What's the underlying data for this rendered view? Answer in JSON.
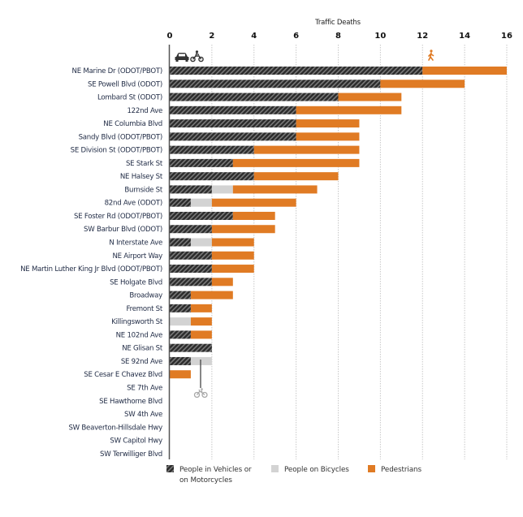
{
  "chart_data": {
    "type": "bar",
    "orientation": "horizontal",
    "stacked": true,
    "title": "Traffic Deaths",
    "xlabel": "Traffic Deaths",
    "ylabel": "",
    "xlim": [
      0,
      16
    ],
    "x_ticks": [
      "0",
      "2",
      "4",
      "6",
      "8",
      "10",
      "12",
      "14",
      "16"
    ],
    "grid": "vertical dotted",
    "legend_position": "bottom",
    "categories": [
      "NE Marine Dr (ODOT/PBOT)",
      "SE Powell Blvd (ODOT)",
      "Lombard St (ODOT)",
      "122nd Ave",
      "NE Columbia Blvd",
      "Sandy Blvd (ODOT/PBOT)",
      "SE Division St (ODOT/PBOT)",
      "SE Stark St",
      "NE Halsey St",
      "Burnside St",
      "82nd Ave (ODOT)",
      "SE Foster Rd (ODOT/PBOT)",
      "SW Barbur Blvd (ODOT)",
      "N Interstate Ave",
      "NE Airport Way",
      "NE Martin Luther King Jr Blvd (ODOT/PBOT)",
      "SE Holgate Blvd",
      "Broadway",
      "Fremont St",
      "Killingsworth St",
      "NE 102nd Ave",
      "NE Glisan St",
      "SE 92nd Ave",
      "SE Cesar E Chavez Blvd",
      "SE 7th Ave",
      "SE Hawthorne Blvd",
      "SW 4th Ave",
      "SW Beaverton-Hillsdale Hwy",
      "SW Capitol Hwy",
      "SW Terwilliger Blvd"
    ],
    "series": [
      {
        "name": "People in Vehicles or on Motorcycles",
        "legend_line1": "People in Vehicles or",
        "legend_line2": "on Motorcycles",
        "color": "#3a3a3a",
        "pattern": "diagonal-hatch",
        "values": [
          12,
          10,
          8,
          6,
          6,
          6,
          4,
          3,
          4,
          2,
          1,
          3,
          2,
          1,
          2,
          2,
          2,
          1,
          1,
          0,
          1,
          2,
          1,
          0,
          0,
          0,
          0,
          0,
          0,
          0
        ]
      },
      {
        "name": "People on Bicycles",
        "color": "#d3d3d3",
        "values": [
          0,
          0,
          0,
          0,
          0,
          0,
          0,
          0,
          0,
          1,
          1,
          0,
          0,
          1,
          0,
          0,
          0,
          0,
          0,
          1,
          0,
          0,
          1,
          0,
          0,
          0,
          0,
          0,
          0,
          0
        ]
      },
      {
        "name": "Pedestrians",
        "color": "#e07b24",
        "values": [
          4,
          4,
          3,
          5,
          3,
          3,
          5,
          6,
          4,
          4,
          4,
          2,
          3,
          2,
          2,
          2,
          1,
          2,
          1,
          1,
          1,
          0,
          0,
          1,
          0,
          0,
          0,
          0,
          0,
          0
        ]
      }
    ],
    "icons": [
      {
        "name": "car-icon",
        "series": "People in Vehicles or on Motorcycles"
      },
      {
        "name": "motorcycle-icon",
        "series": "People in Vehicles or on Motorcycles"
      },
      {
        "name": "pedestrian-icon",
        "series": "Pedestrians"
      },
      {
        "name": "bicycle-icon",
        "series": "People on Bicycles"
      }
    ]
  }
}
